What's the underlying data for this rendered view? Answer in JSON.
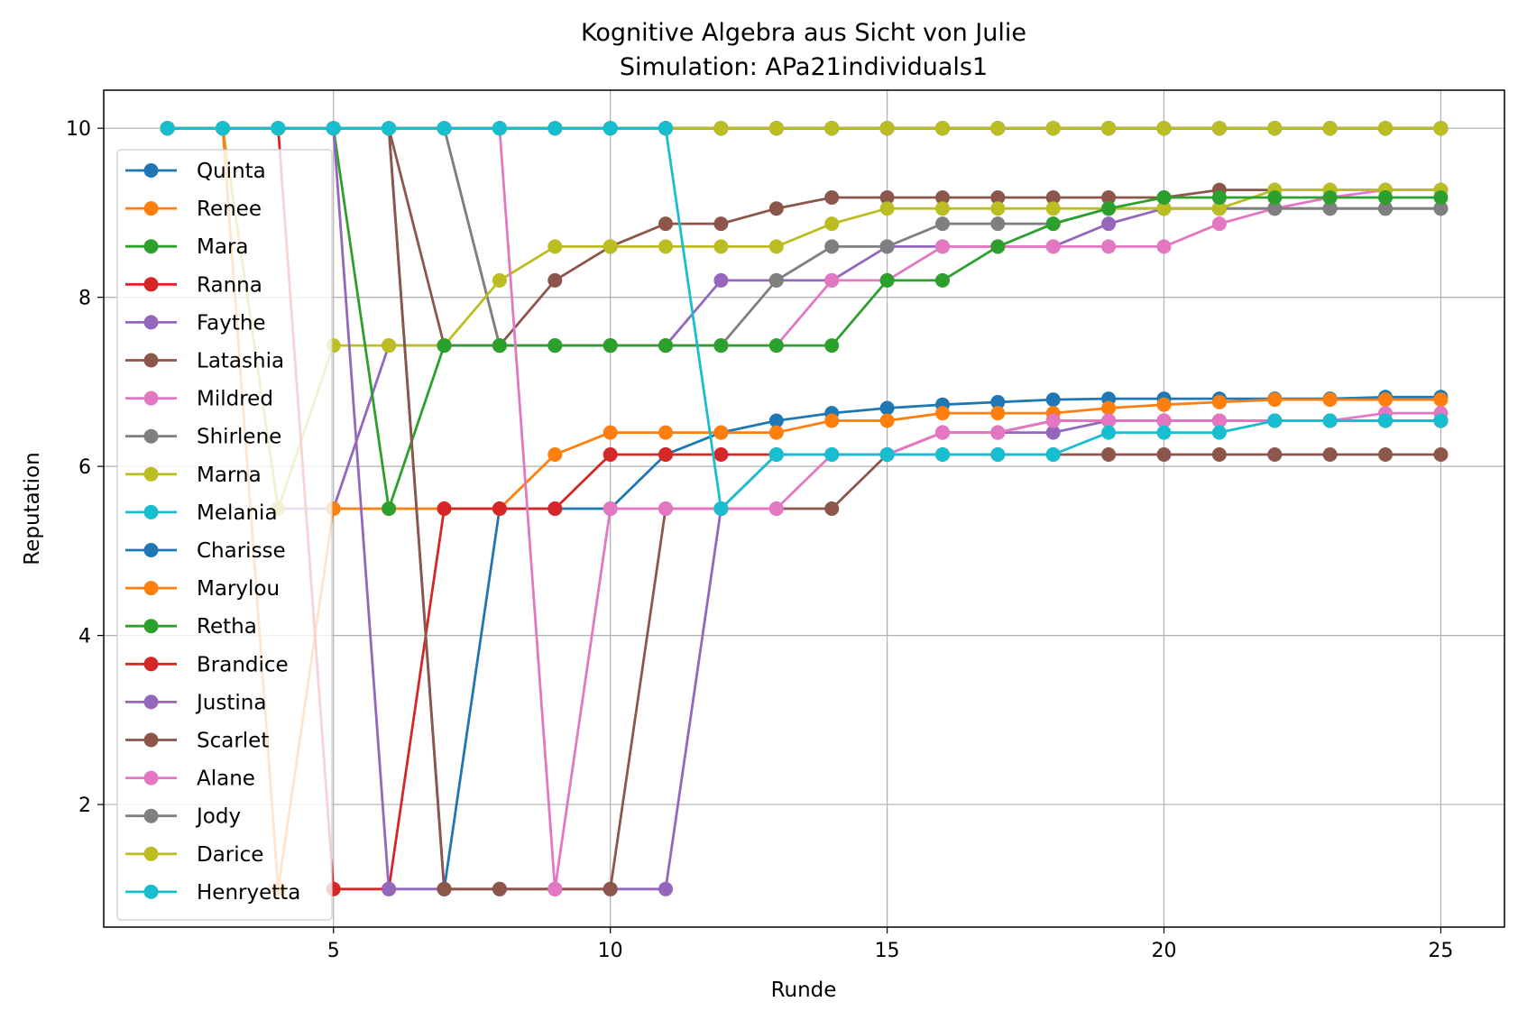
{
  "chart_data": {
    "type": "line",
    "title": "Kognitive Algebra aus Sicht von Julie",
    "subtitle": "Simulation: APa21individuals1",
    "xlabel": "Runde",
    "ylabel": "Reputation",
    "xlim": [
      0.85,
      26.15
    ],
    "ylim": [
      0.55,
      10.45
    ],
    "xticks": [
      5,
      10,
      15,
      20,
      25
    ],
    "yticks": [
      2,
      4,
      6,
      8,
      10
    ],
    "grid": true,
    "legend_position": "left",
    "series": [
      {
        "name": "Quinta",
        "color": "#1f77b4",
        "x": [
          2,
          3,
          4,
          5,
          6,
          7,
          8,
          9,
          10,
          11,
          12,
          13,
          14,
          15,
          16,
          17,
          18,
          19,
          20,
          21,
          22,
          23,
          24,
          25
        ],
        "values": [
          10,
          10,
          10,
          10,
          10,
          10,
          10,
          10,
          10,
          10,
          10,
          10,
          10,
          10,
          10,
          10,
          10,
          10,
          10,
          10,
          10,
          10,
          10,
          10
        ]
      },
      {
        "name": "Renee",
        "color": "#ff7f0e",
        "x": [
          2,
          3,
          4,
          5,
          6,
          7,
          8,
          9,
          10,
          11,
          12,
          13,
          14,
          15,
          16,
          17,
          18,
          19,
          20,
          21,
          22,
          23,
          24,
          25
        ],
        "values": [
          10,
          10,
          10,
          10,
          10,
          10,
          10,
          10,
          10,
          10,
          10,
          10,
          10,
          10,
          10,
          10,
          10,
          10,
          10,
          10,
          10,
          10,
          10,
          10
        ]
      },
      {
        "name": "Mara",
        "color": "#2ca02c",
        "x": [
          2,
          3,
          4,
          5,
          6,
          7,
          8,
          9,
          10,
          11,
          12,
          13,
          14,
          15,
          16,
          17,
          18,
          19,
          20,
          21,
          22,
          23,
          24,
          25
        ],
        "values": [
          10,
          10,
          10,
          10,
          10,
          10,
          10,
          10,
          10,
          10,
          10,
          10,
          10,
          10,
          10,
          10,
          10,
          10,
          10,
          10,
          10,
          10,
          10,
          10
        ]
      },
      {
        "name": "Ranna",
        "color": "#d62728",
        "x": [
          2,
          3,
          4,
          5,
          6,
          7,
          8,
          9,
          10,
          11,
          12,
          13,
          14,
          15,
          16,
          17,
          18,
          19,
          20,
          21,
          22,
          23,
          24,
          25
        ],
        "values": [
          10,
          10,
          10,
          10,
          10,
          10,
          10,
          10,
          10,
          10,
          10,
          10,
          10,
          10,
          10,
          10,
          10,
          10,
          10,
          10,
          10,
          10,
          10,
          10
        ]
      },
      {
        "name": "Faythe",
        "color": "#9467bd",
        "x": [
          2,
          3,
          4,
          5,
          6,
          7,
          8,
          9,
          10,
          11,
          12,
          13,
          14,
          15,
          16,
          17,
          18,
          19,
          20,
          21,
          22,
          23,
          24,
          25
        ],
        "values": [
          10,
          10,
          5.5,
          5.5,
          7.43,
          7.43,
          7.43,
          7.43,
          7.43,
          7.43,
          8.2,
          8.2,
          8.2,
          8.6,
          8.6,
          8.6,
          8.6,
          8.87,
          9.05,
          9.05,
          9.05,
          9.05,
          9.05,
          9.05
        ]
      },
      {
        "name": "Latashia",
        "color": "#8c564b",
        "x": [
          2,
          3,
          4,
          5,
          6,
          7,
          8,
          9,
          10,
          11,
          12,
          13,
          14,
          15,
          16,
          17,
          18,
          19,
          20,
          21,
          22,
          23,
          24,
          25
        ],
        "values": [
          10,
          10,
          10,
          10,
          10,
          7.43,
          7.43,
          8.2,
          8.6,
          8.87,
          8.87,
          9.05,
          9.18,
          9.18,
          9.18,
          9.18,
          9.18,
          9.18,
          9.18,
          9.27,
          9.27,
          9.27,
          9.27,
          9.27
        ]
      },
      {
        "name": "Mildred",
        "color": "#e377c2",
        "x": [
          2,
          3,
          4,
          5,
          6,
          7,
          8,
          9,
          10,
          11,
          12,
          13,
          14,
          15,
          16,
          17,
          18,
          19,
          20,
          21,
          22,
          23,
          24,
          25
        ],
        "values": [
          10,
          10,
          10,
          10,
          10,
          10,
          7.43,
          7.43,
          7.43,
          7.43,
          7.43,
          7.43,
          8.2,
          8.2,
          8.6,
          8.6,
          8.6,
          8.6,
          8.6,
          8.87,
          9.05,
          9.18,
          9.27,
          9.27
        ]
      },
      {
        "name": "Shirlene",
        "color": "#7f7f7f",
        "x": [
          2,
          3,
          4,
          5,
          6,
          7,
          8,
          9,
          10,
          11,
          12,
          13,
          14,
          15,
          16,
          17,
          18,
          19,
          20,
          21,
          22,
          23,
          24,
          25
        ],
        "values": [
          10,
          10,
          10,
          10,
          10,
          10,
          7.43,
          7.43,
          7.43,
          7.43,
          7.43,
          8.2,
          8.6,
          8.6,
          8.87,
          8.87,
          8.87,
          9.05,
          9.05,
          9.05,
          9.05,
          9.05,
          9.05,
          9.05
        ]
      },
      {
        "name": "Marna",
        "color": "#bcbd22",
        "x": [
          2,
          3,
          4,
          5,
          6,
          7,
          8,
          9,
          10,
          11,
          12,
          13,
          14,
          15,
          16,
          17,
          18,
          19,
          20,
          21,
          22,
          23,
          24,
          25
        ],
        "values": [
          10,
          10,
          5.5,
          7.43,
          7.43,
          7.43,
          8.2,
          8.6,
          8.6,
          8.6,
          8.6,
          8.6,
          8.87,
          9.05,
          9.05,
          9.05,
          9.05,
          9.05,
          9.05,
          9.05,
          9.27,
          9.27,
          9.27,
          9.27
        ]
      },
      {
        "name": "Melania",
        "color": "#17becf",
        "x": [
          2,
          3,
          4,
          5,
          6,
          7,
          8,
          9,
          10,
          11,
          12,
          13,
          14,
          15,
          16,
          17,
          18,
          19,
          20,
          21,
          22,
          23,
          24,
          25
        ],
        "values": [
          10,
          10,
          10,
          10,
          10,
          10,
          10,
          10,
          10,
          10,
          10,
          10,
          10,
          10,
          10,
          10,
          10,
          10,
          10,
          10,
          10,
          10,
          10,
          10
        ]
      },
      {
        "name": "Charisse",
        "color": "#1f77b4",
        "x": [
          2,
          3,
          4,
          5,
          6,
          7,
          8,
          9,
          10,
          11,
          12,
          13,
          14,
          15,
          16,
          17,
          18,
          19,
          20,
          21,
          22,
          23,
          24,
          25
        ],
        "values": [
          10,
          10,
          10,
          10,
          10,
          1,
          5.5,
          5.5,
          5.5,
          6.14,
          6.4,
          6.54,
          6.63,
          6.69,
          6.73,
          6.76,
          6.79,
          6.8,
          6.8,
          6.8,
          6.8,
          6.8,
          6.82,
          6.82
        ]
      },
      {
        "name": "Marylou",
        "color": "#ff7f0e",
        "x": [
          2,
          3,
          4,
          5,
          6,
          7,
          8,
          9,
          10,
          11,
          12,
          13,
          14,
          15,
          16,
          17,
          18,
          19,
          20,
          21,
          22,
          23,
          24,
          25
        ],
        "values": [
          10,
          10,
          1,
          5.5,
          5.5,
          5.5,
          5.5,
          6.14,
          6.4,
          6.4,
          6.4,
          6.4,
          6.54,
          6.54,
          6.63,
          6.63,
          6.63,
          6.69,
          6.73,
          6.76,
          6.79,
          6.79,
          6.79,
          6.79
        ]
      },
      {
        "name": "Retha",
        "color": "#2ca02c",
        "x": [
          2,
          3,
          4,
          5,
          6,
          7,
          8,
          9,
          10,
          11,
          12,
          13,
          14,
          15,
          16,
          17,
          18,
          19,
          20,
          21,
          22,
          23,
          24,
          25
        ],
        "values": [
          10,
          10,
          10,
          10,
          5.5,
          7.43,
          7.43,
          7.43,
          7.43,
          7.43,
          7.43,
          7.43,
          7.43,
          8.2,
          8.2,
          8.6,
          8.87,
          9.05,
          9.18,
          9.18,
          9.18,
          9.18,
          9.18,
          9.18
        ]
      },
      {
        "name": "Brandice",
        "color": "#d62728",
        "x": [
          2,
          3,
          4,
          5,
          6,
          7,
          8,
          9,
          10,
          11,
          12,
          13,
          14,
          15,
          16,
          17,
          18,
          19,
          20,
          21,
          22,
          23,
          24,
          25
        ],
        "values": [
          10,
          10,
          10,
          1,
          1,
          5.5,
          5.5,
          5.5,
          6.14,
          6.14,
          6.14,
          6.14,
          6.14,
          6.14,
          6.4,
          6.4,
          6.54,
          6.54,
          6.54,
          6.54,
          6.54,
          6.54,
          6.54,
          6.54
        ]
      },
      {
        "name": "Justina",
        "color": "#9467bd",
        "x": [
          2,
          3,
          4,
          5,
          6,
          7,
          8,
          9,
          10,
          11,
          12,
          13,
          14,
          15,
          16,
          17,
          18,
          19,
          20,
          21,
          22,
          23,
          24,
          25
        ],
        "values": [
          10,
          10,
          10,
          10,
          1,
          1,
          1,
          1,
          1,
          1,
          5.5,
          6.14,
          6.14,
          6.14,
          6.4,
          6.4,
          6.4,
          6.54,
          6.54,
          6.54,
          6.54,
          6.54,
          6.54,
          6.54
        ]
      },
      {
        "name": "Scarlet",
        "color": "#8c564b",
        "x": [
          2,
          3,
          4,
          5,
          6,
          7,
          8,
          9,
          10,
          11,
          12,
          13,
          14,
          15,
          16,
          17,
          18,
          19,
          20,
          21,
          22,
          23,
          24,
          25
        ],
        "values": [
          10,
          10,
          10,
          10,
          10,
          1,
          1,
          1,
          1,
          5.5,
          5.5,
          5.5,
          5.5,
          6.14,
          6.14,
          6.14,
          6.14,
          6.14,
          6.14,
          6.14,
          6.14,
          6.14,
          6.14,
          6.14
        ]
      },
      {
        "name": "Alane",
        "color": "#e377c2",
        "x": [
          2,
          3,
          4,
          5,
          6,
          7,
          8,
          9,
          10,
          11,
          12,
          13,
          14,
          15,
          16,
          17,
          18,
          19,
          20,
          21,
          22,
          23,
          24,
          25
        ],
        "values": [
          10,
          10,
          10,
          10,
          10,
          10,
          10,
          1,
          5.5,
          5.5,
          5.5,
          5.5,
          6.14,
          6.14,
          6.4,
          6.4,
          6.54,
          6.54,
          6.54,
          6.54,
          6.54,
          6.54,
          6.63,
          6.63
        ]
      },
      {
        "name": "Jody",
        "color": "#7f7f7f",
        "x": [
          2,
          3,
          4,
          5,
          6,
          7,
          8,
          9,
          10,
          11,
          12,
          13,
          14,
          15,
          16,
          17,
          18,
          19,
          20,
          21,
          22,
          23,
          24,
          25
        ],
        "values": [
          10,
          10,
          10,
          10,
          10,
          10,
          10,
          10,
          10,
          10,
          10,
          10,
          10,
          10,
          10,
          10,
          10,
          10,
          10,
          10,
          10,
          10,
          10,
          10
        ]
      },
      {
        "name": "Darice",
        "color": "#bcbd22",
        "x": [
          2,
          3,
          4,
          5,
          6,
          7,
          8,
          9,
          10,
          11,
          12,
          13,
          14,
          15,
          16,
          17,
          18,
          19,
          20,
          21,
          22,
          23,
          24,
          25
        ],
        "values": [
          10,
          10,
          10,
          10,
          10,
          10,
          10,
          10,
          10,
          10,
          10,
          10,
          10,
          10,
          10,
          10,
          10,
          10,
          10,
          10,
          10,
          10,
          10,
          10
        ]
      },
      {
        "name": "Henryetta",
        "color": "#17becf",
        "x": [
          2,
          3,
          4,
          5,
          6,
          7,
          8,
          9,
          10,
          11,
          12,
          13,
          14,
          15,
          16,
          17,
          18,
          19,
          20,
          21,
          22,
          23,
          24,
          25
        ],
        "values": [
          10,
          10,
          10,
          10,
          10,
          10,
          10,
          10,
          10,
          10,
          5.5,
          6.14,
          6.14,
          6.14,
          6.14,
          6.14,
          6.14,
          6.4,
          6.4,
          6.4,
          6.54,
          6.54,
          6.54,
          6.54
        ]
      }
    ]
  }
}
